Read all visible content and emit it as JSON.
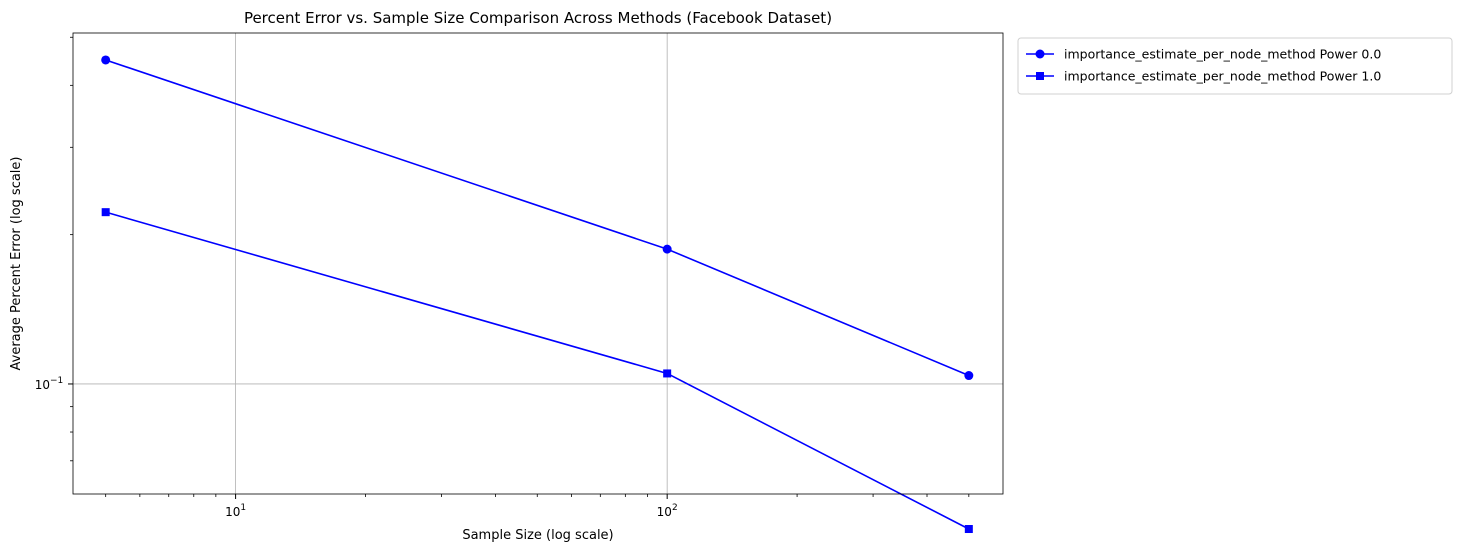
{
  "chart_data": {
    "type": "line",
    "title": "Percent Error vs. Sample Size Comparison Across Methods (Facebook Dataset)",
    "xlabel": "Sample Size (log scale)",
    "ylabel": "Average Percent Error (log scale)",
    "x_scale": "log",
    "y_scale": "log",
    "xlim": [
      4.2,
      600
    ],
    "ylim": [
      0.06,
      0.51
    ],
    "x_ticks": [
      {
        "value": 10,
        "base": "10",
        "exp": "1"
      },
      {
        "value": 100,
        "base": "10",
        "exp": "2"
      }
    ],
    "y_ticks": [
      {
        "value": 0.1,
        "base": "10",
        "exp": "−1"
      }
    ],
    "grid": true,
    "legend_position": "outside-top-right",
    "series": [
      {
        "name": "importance_estimate_per_node_method Power 0.0",
        "color": "#0000ff",
        "marker": "circle",
        "x": [
          5,
          100,
          500
        ],
        "y": [
          0.45,
          0.187,
          0.104
        ]
      },
      {
        "name": "importance_estimate_per_node_method Power 1.0",
        "color": "#0000ff",
        "marker": "square",
        "x": [
          5,
          100,
          500
        ],
        "y": [
          0.222,
          0.105,
          0.051
        ]
      }
    ]
  }
}
